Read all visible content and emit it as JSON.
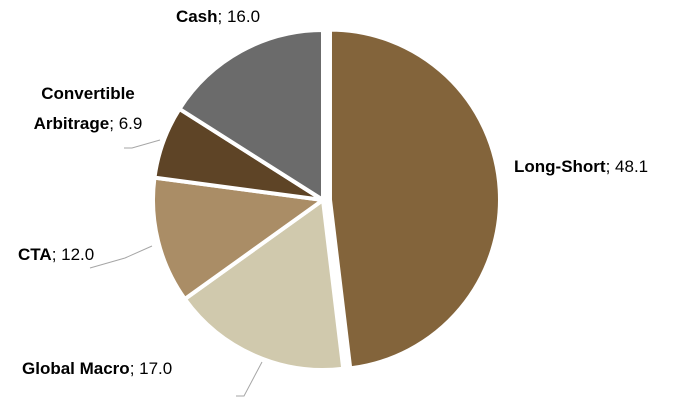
{
  "chart_data": {
    "type": "pie",
    "categories": [
      "Long-Short",
      "Global Macro",
      "CTA",
      "Convertible Arbitrage",
      "Cash"
    ],
    "values": [
      48.1,
      17.0,
      12.0,
      6.9,
      16.0
    ],
    "value_labels": [
      "48.1",
      "17.0",
      "12.0",
      "6.9",
      "16.0"
    ],
    "label_separator": "; ",
    "colors": [
      "#83643b",
      "#d0c9ad",
      "#aa8d66",
      "#5e4426",
      "#6b6b6b"
    ]
  }
}
